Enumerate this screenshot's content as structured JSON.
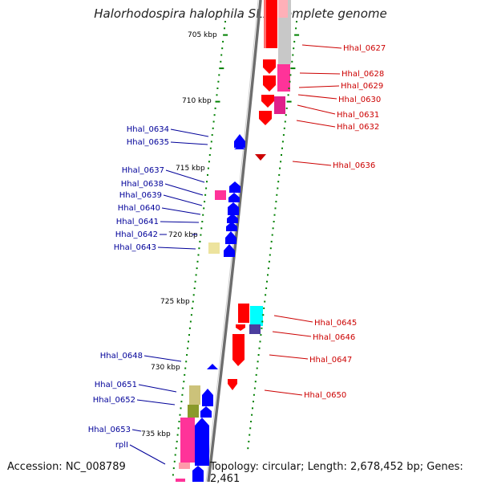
{
  "title": "Halorhodospira halophila SL1, complete genome",
  "footer": {
    "accession": "Accession: NC_008789",
    "topology": "Topology: circular; Length: 2,678,452 bp; Genes: 2,461"
  },
  "colors": {
    "forward": "#ff0000",
    "reverse": "#0000ff",
    "forward_label": "#cc0000",
    "reverse_label": "#000099",
    "tick": "#008000",
    "backbone": "#808080",
    "rrna": "#ff3399",
    "trna": "#ccc27a",
    "misc": "#00ffff"
  },
  "ruler_labels": [
    "705 kbp",
    "710 kbp",
    "715 kbp",
    "720 kbp",
    "725 kbp",
    "730 kbp",
    "735 kbp"
  ],
  "forward_genes": [
    "Hhal_0627",
    "Hhal_0628",
    "Hhal_0629",
    "Hhal_0630",
    "Hhal_0631",
    "Hhal_0632",
    "Hhal_0636",
    "Hhal_0645",
    "Hhal_0646",
    "Hhal_0647",
    "Hhal_0650"
  ],
  "reverse_genes": [
    "Hhal_0634",
    "Hhal_0635",
    "Hhal_0637",
    "Hhal_0638",
    "Hhal_0639",
    "Hhal_0640",
    "Hhal_0641",
    "Hhal_0642",
    "Hhal_0643",
    "Hhal_0648",
    "Hhal_0651",
    "Hhal_0652",
    "Hhal_0653",
    "rplI"
  ]
}
